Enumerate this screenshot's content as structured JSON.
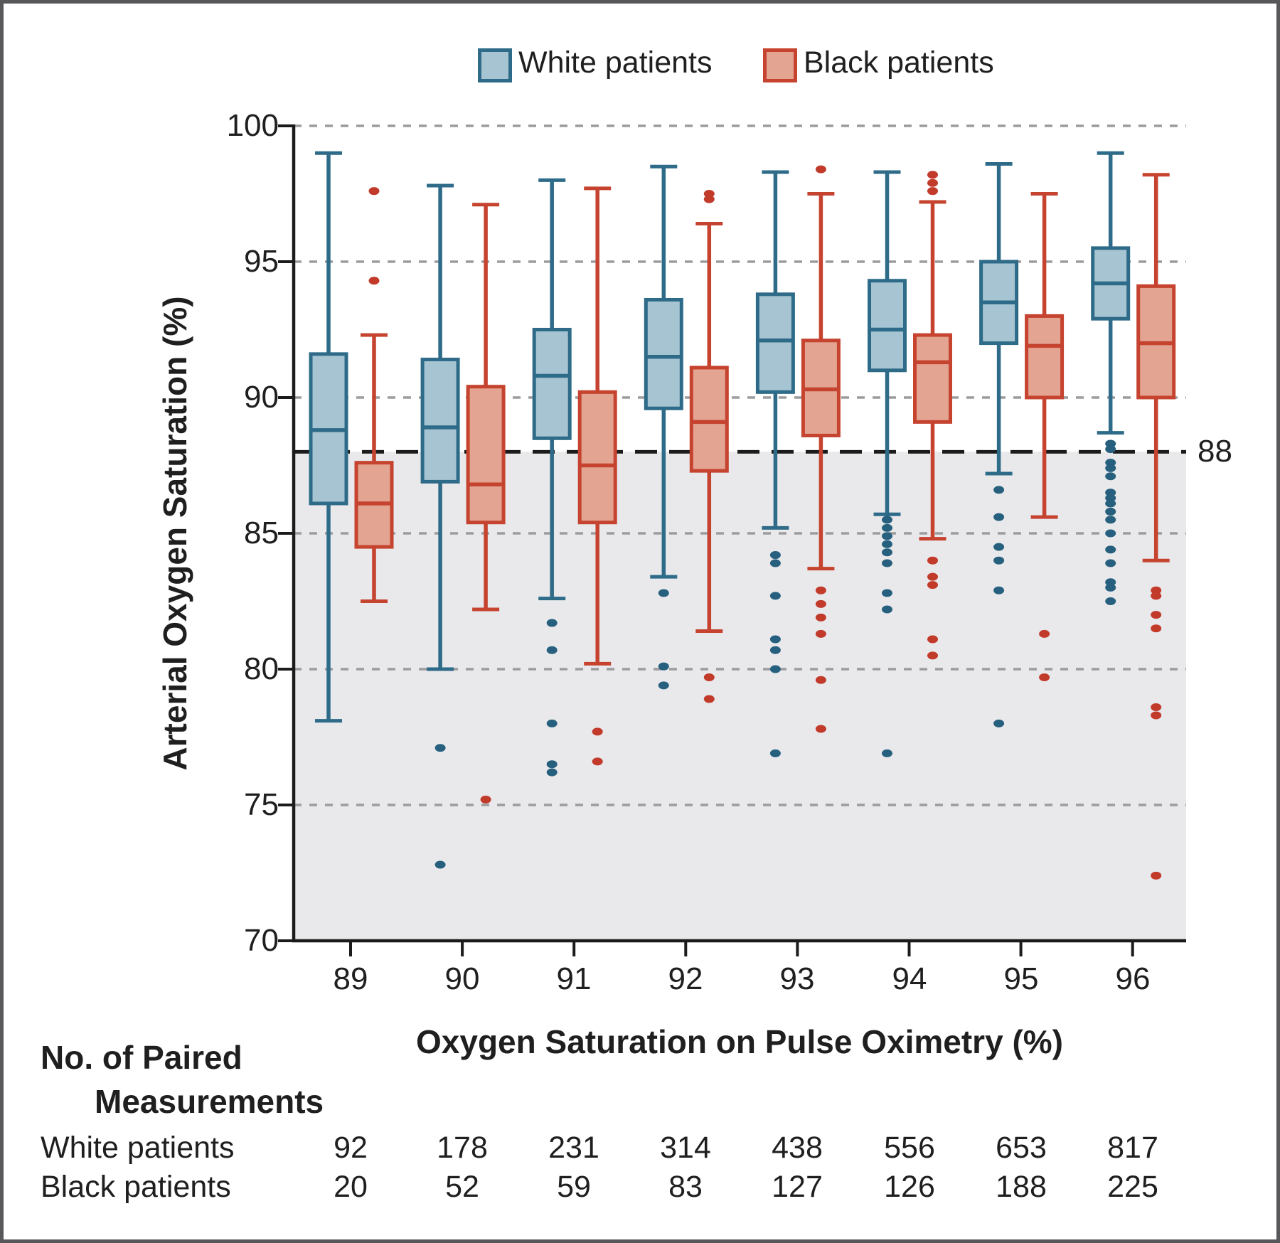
{
  "chart_data": {
    "type": "boxplot",
    "xlabel": "Oxygen Saturation on Pulse Oximetry (%)",
    "ylabel": "Arterial Oxygen Saturation (%)",
    "ylim": [
      70,
      100
    ],
    "y_ticks": [
      "100",
      "95",
      "90",
      "85",
      "80",
      "75",
      "70"
    ],
    "y_tick_values": [
      100,
      95,
      90,
      85,
      80,
      75,
      70
    ],
    "gridline_values": [
      100,
      95,
      90,
      85,
      80,
      75
    ],
    "x_ticks": [
      "89",
      "90",
      "91",
      "92",
      "93",
      "94",
      "95",
      "96"
    ],
    "grid": "dotted",
    "legend_position": "top",
    "threshold": {
      "value": 88,
      "label": "88"
    },
    "shaded_region": {
      "from": 70,
      "to": 88,
      "color": "#e9e9ec"
    },
    "colors": {
      "grid": "#9c9c9e",
      "threshold_line": "#1b1b1b",
      "axis": "#1b1b1b",
      "page_border": "#58585b"
    },
    "series": [
      {
        "name": "White patients",
        "fill": "#a7c4d2",
        "stroke": "#2e6b88",
        "dot": "#26607e",
        "boxes": [
          {
            "whisker_low": 78.1,
            "q1": 86.1,
            "median": 88.8,
            "q3": 91.6,
            "whisker_high": 99.0,
            "outliers": []
          },
          {
            "whisker_low": 80.0,
            "q1": 86.9,
            "median": 88.9,
            "q3": 91.4,
            "whisker_high": 97.8,
            "outliers": [
              77.1,
              72.8
            ]
          },
          {
            "whisker_low": 82.6,
            "q1": 88.5,
            "median": 90.8,
            "q3": 92.5,
            "whisker_high": 98.0,
            "outliers": [
              81.7,
              80.7,
              78.0,
              76.5,
              76.2
            ]
          },
          {
            "whisker_low": 83.4,
            "q1": 89.6,
            "median": 91.5,
            "q3": 93.6,
            "whisker_high": 98.5,
            "outliers": [
              82.8,
              80.1,
              79.4
            ]
          },
          {
            "whisker_low": 85.2,
            "q1": 90.2,
            "median": 92.1,
            "q3": 93.8,
            "whisker_high": 98.3,
            "outliers": [
              84.2,
              83.9,
              82.7,
              81.1,
              80.7,
              80.0,
              76.9
            ]
          },
          {
            "whisker_low": 85.7,
            "q1": 91.0,
            "median": 92.5,
            "q3": 94.3,
            "whisker_high": 98.3,
            "outliers": [
              85.5,
              85.2,
              84.9,
              84.6,
              84.3,
              83.9,
              82.8,
              82.2,
              76.9
            ]
          },
          {
            "whisker_low": 87.2,
            "q1": 92.0,
            "median": 93.5,
            "q3": 95.0,
            "whisker_high": 98.6,
            "outliers": [
              86.6,
              85.6,
              84.5,
              84.0,
              82.9,
              78.0
            ]
          },
          {
            "whisker_low": 88.7,
            "q1": 92.9,
            "median": 94.2,
            "q3": 95.5,
            "whisker_high": 99.0,
            "outliers": [
              88.3,
              88.1,
              87.6,
              87.4,
              87.1,
              86.5,
              86.3,
              86.1,
              85.8,
              85.5,
              85.0,
              84.4,
              83.9,
              83.2,
              83.0,
              82.5
            ]
          }
        ]
      },
      {
        "name": "Black patients",
        "fill": "#e3a492",
        "stroke": "#c5432f",
        "dot": "#c13a2a",
        "boxes": [
          {
            "whisker_low": 82.5,
            "q1": 84.5,
            "median": 86.1,
            "q3": 87.6,
            "whisker_high": 92.3,
            "outliers": [
              97.6,
              94.3
            ]
          },
          {
            "whisker_low": 82.2,
            "q1": 85.4,
            "median": 86.8,
            "q3": 90.4,
            "whisker_high": 97.1,
            "outliers": [
              75.2
            ]
          },
          {
            "whisker_low": 80.2,
            "q1": 85.4,
            "median": 87.5,
            "q3": 90.2,
            "whisker_high": 97.7,
            "outliers": [
              77.7,
              76.6
            ]
          },
          {
            "whisker_low": 81.4,
            "q1": 87.3,
            "median": 89.1,
            "q3": 91.1,
            "whisker_high": 96.4,
            "outliers": [
              97.5,
              97.3,
              79.7,
              78.9
            ]
          },
          {
            "whisker_low": 83.7,
            "q1": 88.6,
            "median": 90.3,
            "q3": 92.1,
            "whisker_high": 97.5,
            "outliers": [
              98.4,
              82.9,
              82.4,
              81.9,
              81.3,
              79.6,
              77.8
            ]
          },
          {
            "whisker_low": 84.8,
            "q1": 89.1,
            "median": 91.3,
            "q3": 92.3,
            "whisker_high": 97.2,
            "outliers": [
              98.2,
              97.9,
              97.6,
              84.0,
              83.4,
              83.1,
              81.1,
              80.5
            ]
          },
          {
            "whisker_low": 85.6,
            "q1": 90.0,
            "median": 91.9,
            "q3": 93.0,
            "whisker_high": 97.5,
            "outliers": [
              81.3,
              79.7
            ]
          },
          {
            "whisker_low": 84.0,
            "q1": 90.0,
            "median": 92.0,
            "q3": 94.1,
            "whisker_high": 98.2,
            "outliers": [
              82.9,
              82.7,
              82.0,
              81.5,
              78.6,
              78.3,
              72.4
            ]
          }
        ]
      }
    ]
  },
  "counts_table": {
    "header_line1": "No. of Paired",
    "header_line2": "Measurements",
    "rows": [
      {
        "label": "White patients",
        "values": [
          "92",
          "178",
          "231",
          "314",
          "438",
          "556",
          "653",
          "817"
        ]
      },
      {
        "label": "Black patients",
        "values": [
          "20",
          "52",
          "59",
          "83",
          "127",
          "126",
          "188",
          "225"
        ]
      }
    ]
  }
}
